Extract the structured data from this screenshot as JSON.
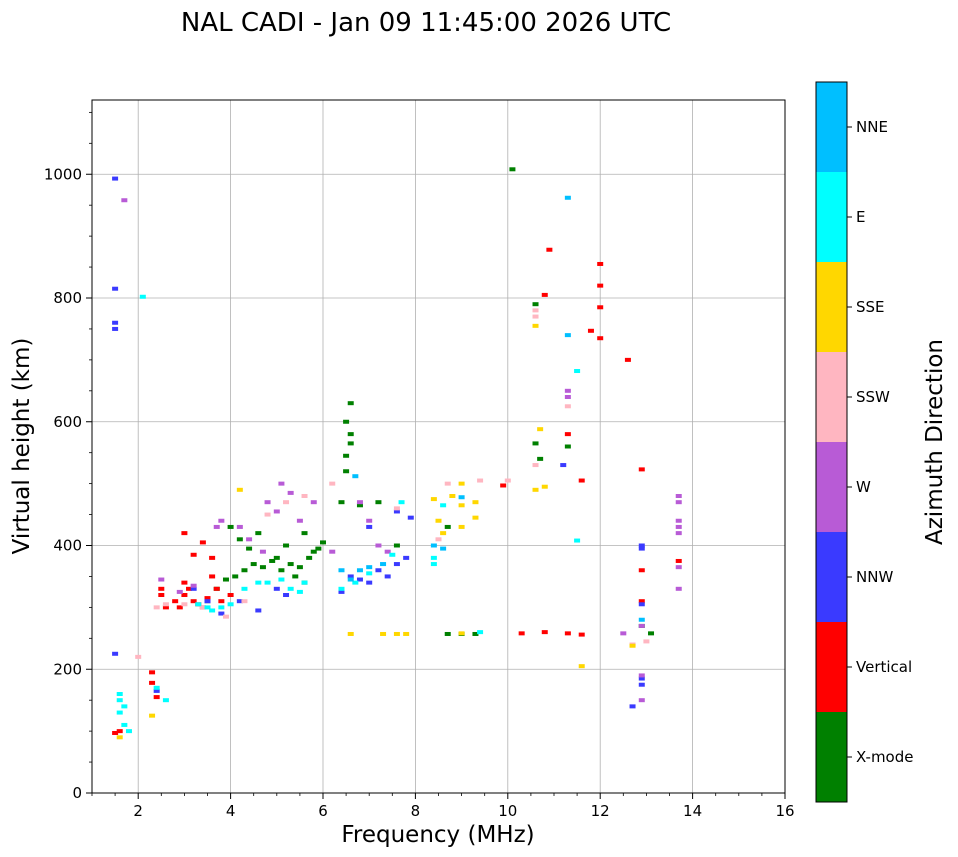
{
  "chart_data": {
    "type": "scatter",
    "title": "NAL CADI - Jan 09 11:45:00 2026 UTC",
    "xlabel": "Frequency (MHz)",
    "ylabel": "Virtual height (km)",
    "xlim": [
      1,
      16
    ],
    "ylim": [
      0,
      1120
    ],
    "xticks": [
      2,
      4,
      6,
      8,
      10,
      12,
      14,
      16
    ],
    "yticks": [
      0,
      200,
      400,
      600,
      800,
      1000
    ],
    "grid": true,
    "colorbar": {
      "label": "Azimuth Direction",
      "position": "right",
      "categories": [
        {
          "name": "X-mode",
          "color": "#008000"
        },
        {
          "name": "Vertical",
          "color": "#ff0000"
        },
        {
          "name": "NNW",
          "color": "#3a3aff"
        },
        {
          "name": "W",
          "color": "#b85bd6"
        },
        {
          "name": "SSW",
          "color": "#ffb6c1"
        },
        {
          "name": "SSE",
          "color": "#ffd700"
        },
        {
          "name": "E",
          "color": "#00ffff"
        },
        {
          "name": "NNE",
          "color": "#00bfff"
        }
      ]
    },
    "series": [
      {
        "name": "X-mode",
        "points": [
          [
            3.5,
            310
          ],
          [
            3.7,
            330
          ],
          [
            3.9,
            345
          ],
          [
            4.1,
            350
          ],
          [
            4.3,
            360
          ],
          [
            4.5,
            370
          ],
          [
            4.7,
            365
          ],
          [
            4.9,
            375
          ],
          [
            5.1,
            360
          ],
          [
            5.3,
            370
          ],
          [
            5.5,
            365
          ],
          [
            5.7,
            380
          ],
          [
            5.9,
            395
          ],
          [
            6.0,
            405
          ],
          [
            5.2,
            400
          ],
          [
            5.0,
            380
          ],
          [
            4.6,
            420
          ],
          [
            4.2,
            410
          ],
          [
            5.6,
            420
          ],
          [
            5.8,
            390
          ],
          [
            6.4,
            470
          ],
          [
            6.5,
            520
          ],
          [
            6.5,
            545
          ],
          [
            6.6,
            565
          ],
          [
            6.6,
            580
          ],
          [
            6.5,
            600
          ],
          [
            6.6,
            630
          ],
          [
            6.8,
            465
          ],
          [
            7.2,
            470
          ],
          [
            7.6,
            400
          ],
          [
            8.7,
            430
          ],
          [
            8.7,
            257
          ],
          [
            9.0,
            257
          ],
          [
            9.3,
            257
          ],
          [
            10.7,
            540
          ],
          [
            10.6,
            565
          ],
          [
            10.6,
            790
          ],
          [
            11.3,
            560
          ],
          [
            12.9,
            270
          ],
          [
            13.1,
            258
          ],
          [
            10.1,
            1008
          ],
          [
            4.0,
            430
          ],
          [
            4.4,
            395
          ],
          [
            5.4,
            350
          ],
          [
            5.6,
            340
          ]
        ]
      },
      {
        "name": "Vertical",
        "points": [
          [
            1.5,
            97
          ],
          [
            1.6,
            100
          ],
          [
            2.3,
            195
          ],
          [
            2.3,
            178
          ],
          [
            2.4,
            155
          ],
          [
            2.5,
            330
          ],
          [
            2.5,
            320
          ],
          [
            2.6,
            300
          ],
          [
            2.8,
            310
          ],
          [
            2.9,
            300
          ],
          [
            3.0,
            320
          ],
          [
            3.0,
            340
          ],
          [
            3.1,
            330
          ],
          [
            3.2,
            310
          ],
          [
            3.3,
            305
          ],
          [
            3.4,
            300
          ],
          [
            3.5,
            315
          ],
          [
            3.6,
            350
          ],
          [
            3.7,
            330
          ],
          [
            3.8,
            310
          ],
          [
            4.0,
            320
          ],
          [
            3.6,
            380
          ],
          [
            3.4,
            405
          ],
          [
            3.2,
            385
          ],
          [
            3.0,
            420
          ],
          [
            9.9,
            497
          ],
          [
            10.3,
            258
          ],
          [
            10.8,
            260
          ],
          [
            10.8,
            805
          ],
          [
            10.9,
            878
          ],
          [
            11.3,
            580
          ],
          [
            11.3,
            258
          ],
          [
            11.6,
            505
          ],
          [
            11.6,
            256
          ],
          [
            11.8,
            747
          ],
          [
            12.0,
            735
          ],
          [
            12.0,
            785
          ],
          [
            12.0,
            820
          ],
          [
            12.0,
            855
          ],
          [
            12.6,
            700
          ],
          [
            12.9,
            523
          ],
          [
            12.9,
            360
          ],
          [
            12.9,
            310
          ],
          [
            13.7,
            375
          ]
        ]
      },
      {
        "name": "NNW",
        "points": [
          [
            1.5,
            993
          ],
          [
            1.5,
            760
          ],
          [
            1.5,
            750
          ],
          [
            1.5,
            815
          ],
          [
            1.5,
            225
          ],
          [
            2.4,
            165
          ],
          [
            3.2,
            330
          ],
          [
            3.5,
            310
          ],
          [
            3.8,
            290
          ],
          [
            4.2,
            310
          ],
          [
            4.6,
            295
          ],
          [
            5.0,
            330
          ],
          [
            5.2,
            320
          ],
          [
            6.4,
            325
          ],
          [
            6.6,
            350
          ],
          [
            6.8,
            345
          ],
          [
            7.0,
            340
          ],
          [
            7.2,
            360
          ],
          [
            7.4,
            350
          ],
          [
            7.6,
            370
          ],
          [
            7.8,
            380
          ],
          [
            7.9,
            445
          ],
          [
            7.6,
            455
          ],
          [
            7.0,
            430
          ],
          [
            11.2,
            530
          ],
          [
            12.9,
            400
          ],
          [
            12.9,
            395
          ],
          [
            12.9,
            305
          ],
          [
            12.9,
            185
          ],
          [
            12.9,
            175
          ],
          [
            12.7,
            140
          ]
        ]
      },
      {
        "name": "W",
        "points": [
          [
            2.5,
            345
          ],
          [
            2.9,
            325
          ],
          [
            3.2,
            335
          ],
          [
            3.7,
            430
          ],
          [
            3.8,
            440
          ],
          [
            4.2,
            430
          ],
          [
            4.4,
            410
          ],
          [
            4.7,
            390
          ],
          [
            4.8,
            470
          ],
          [
            5.0,
            455
          ],
          [
            5.1,
            500
          ],
          [
            5.3,
            485
          ],
          [
            5.5,
            440
          ],
          [
            5.8,
            470
          ],
          [
            6.2,
            390
          ],
          [
            6.8,
            470
          ],
          [
            7.0,
            440
          ],
          [
            7.2,
            400
          ],
          [
            7.4,
            390
          ],
          [
            11.3,
            650
          ],
          [
            11.3,
            640
          ],
          [
            12.5,
            258
          ],
          [
            12.9,
            150
          ],
          [
            12.9,
            190
          ],
          [
            12.9,
            270
          ],
          [
            13.7,
            480
          ],
          [
            13.7,
            470
          ],
          [
            13.7,
            440
          ],
          [
            13.7,
            430
          ],
          [
            13.7,
            420
          ],
          [
            13.7,
            365
          ],
          [
            13.7,
            330
          ],
          [
            1.7,
            958
          ]
        ]
      },
      {
        "name": "SSW",
        "points": [
          [
            2.4,
            300
          ],
          [
            2.6,
            305
          ],
          [
            3.0,
            305
          ],
          [
            3.4,
            300
          ],
          [
            3.9,
            285
          ],
          [
            4.3,
            310
          ],
          [
            4.8,
            450
          ],
          [
            5.2,
            470
          ],
          [
            5.6,
            480
          ],
          [
            6.2,
            500
          ],
          [
            7.6,
            460
          ],
          [
            8.5,
            410
          ],
          [
            8.7,
            500
          ],
          [
            9.4,
            505
          ],
          [
            10.0,
            505
          ],
          [
            10.6,
            530
          ],
          [
            10.6,
            780
          ],
          [
            10.6,
            770
          ],
          [
            11.3,
            625
          ],
          [
            12.7,
            240
          ],
          [
            13.0,
            245
          ],
          [
            2.0,
            220
          ]
        ]
      },
      {
        "name": "SSE",
        "points": [
          [
            2.3,
            125
          ],
          [
            1.6,
            90
          ],
          [
            4.2,
            490
          ],
          [
            8.4,
            475
          ],
          [
            8.5,
            440
          ],
          [
            8.6,
            420
          ],
          [
            8.8,
            480
          ],
          [
            9.0,
            500
          ],
          [
            9.0,
            465
          ],
          [
            9.0,
            430
          ],
          [
            9.3,
            470
          ],
          [
            9.3,
            445
          ],
          [
            10.6,
            490
          ],
          [
            10.8,
            495
          ],
          [
            10.6,
            755
          ],
          [
            10.7,
            588
          ],
          [
            6.6,
            257
          ],
          [
            7.3,
            257
          ],
          [
            7.6,
            257
          ],
          [
            7.8,
            257
          ],
          [
            9.0,
            258
          ],
          [
            11.6,
            205
          ],
          [
            12.7,
            238
          ]
        ]
      },
      {
        "name": "E",
        "points": [
          [
            1.6,
            160
          ],
          [
            1.6,
            150
          ],
          [
            1.6,
            130
          ],
          [
            1.7,
            110
          ],
          [
            1.8,
            100
          ],
          [
            1.7,
            140
          ],
          [
            2.4,
            170
          ],
          [
            2.6,
            150
          ],
          [
            3.3,
            305
          ],
          [
            3.5,
            300
          ],
          [
            3.6,
            295
          ],
          [
            3.8,
            300
          ],
          [
            4.0,
            305
          ],
          [
            4.3,
            330
          ],
          [
            4.6,
            340
          ],
          [
            4.8,
            340
          ],
          [
            5.1,
            345
          ],
          [
            5.3,
            330
          ],
          [
            5.5,
            325
          ],
          [
            5.6,
            340
          ],
          [
            6.4,
            330
          ],
          [
            6.7,
            340
          ],
          [
            7.0,
            355
          ],
          [
            7.5,
            385
          ],
          [
            7.7,
            470
          ],
          [
            8.4,
            380
          ],
          [
            8.4,
            370
          ],
          [
            8.6,
            465
          ],
          [
            9.4,
            260
          ],
          [
            11.5,
            408
          ],
          [
            11.5,
            682
          ],
          [
            2.1,
            802
          ]
        ]
      },
      {
        "name": "NNE",
        "points": [
          [
            6.4,
            360
          ],
          [
            6.6,
            345
          ],
          [
            6.8,
            360
          ],
          [
            7.0,
            365
          ],
          [
            7.3,
            370
          ],
          [
            6.7,
            512
          ],
          [
            11.3,
            740
          ],
          [
            11.3,
            962
          ],
          [
            8.4,
            400
          ],
          [
            8.6,
            395
          ],
          [
            12.9,
            280
          ],
          [
            9.0,
            478
          ]
        ]
      }
    ]
  }
}
